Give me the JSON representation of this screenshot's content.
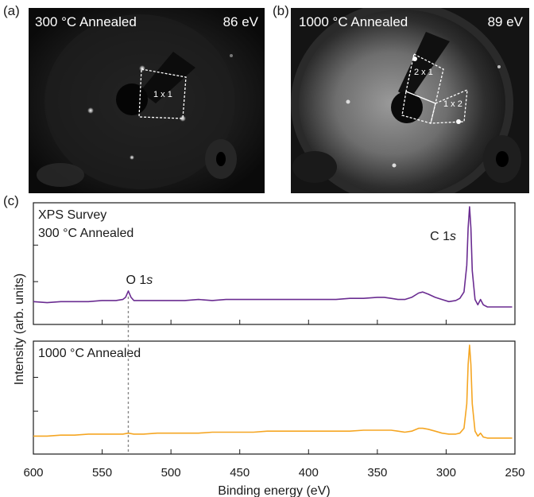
{
  "panel_a": {
    "letter": "(a)",
    "condition": "300 °C Annealed",
    "energy": "86 eV",
    "boxes": [
      {
        "label": "1 x 1"
      }
    ]
  },
  "panel_b": {
    "letter": "(b)",
    "condition": "1000 °C Annealed",
    "energy": "89 eV",
    "boxes": [
      {
        "label": "2 x 1"
      },
      {
        "label": "1 x 2"
      }
    ]
  },
  "panel_c": {
    "letter": "(c)"
  },
  "chart_data": {
    "type": "line",
    "xlabel": "Binding energy (eV)",
    "ylabel": "Intensity (arb. units)",
    "xlim": [
      600,
      250
    ],
    "xticks": [
      600,
      550,
      500,
      450,
      400,
      350,
      300,
      250
    ],
    "x_reversed": true,
    "reference_line": {
      "x": 531,
      "style": "dashed",
      "color": "#888888"
    },
    "panels": [
      {
        "annotation_lines": [
          "XPS Survey",
          "300 °C Annealed"
        ],
        "color": "#6a2c91",
        "ylim": [
          0,
          1
        ],
        "peaks": [
          {
            "label": "O 1s",
            "x": 531
          },
          {
            "label": "C 1s",
            "x": 284
          }
        ],
        "series": {
          "x": [
            600,
            590,
            580,
            570,
            560,
            550,
            545,
            540,
            535,
            533,
            531,
            529,
            527,
            520,
            510,
            500,
            490,
            480,
            470,
            460,
            450,
            440,
            430,
            420,
            410,
            400,
            390,
            380,
            370,
            360,
            350,
            345,
            340,
            335,
            330,
            325,
            320,
            317,
            313,
            308,
            303,
            298,
            293,
            290,
            287,
            285,
            284,
            283,
            282,
            281,
            279,
            277,
            275,
            273,
            270,
            265,
            260,
            255,
            252
          ],
          "values": [
            0.11,
            0.1,
            0.11,
            0.11,
            0.11,
            0.12,
            0.12,
            0.12,
            0.13,
            0.15,
            0.21,
            0.15,
            0.12,
            0.12,
            0.12,
            0.12,
            0.12,
            0.13,
            0.12,
            0.13,
            0.13,
            0.13,
            0.13,
            0.13,
            0.13,
            0.13,
            0.13,
            0.13,
            0.14,
            0.14,
            0.15,
            0.15,
            0.14,
            0.13,
            0.13,
            0.15,
            0.19,
            0.2,
            0.18,
            0.15,
            0.13,
            0.11,
            0.12,
            0.14,
            0.2,
            0.45,
            0.8,
            1.0,
            0.8,
            0.4,
            0.13,
            0.08,
            0.13,
            0.08,
            0.06,
            0.06,
            0.06,
            0.06,
            0.06
          ]
        }
      },
      {
        "annotation_lines": [
          "1000 °C Annealed"
        ],
        "color": "#f5a623",
        "ylim": [
          0,
          1
        ],
        "peaks": [],
        "series": {
          "x": [
            600,
            590,
            580,
            570,
            560,
            550,
            540,
            535,
            531,
            527,
            520,
            510,
            500,
            490,
            480,
            470,
            460,
            450,
            440,
            430,
            420,
            410,
            400,
            390,
            380,
            370,
            360,
            350,
            345,
            340,
            335,
            330,
            325,
            320,
            317,
            313,
            308,
            303,
            298,
            293,
            290,
            287,
            285,
            284,
            283,
            282,
            281,
            279,
            277,
            275,
            273,
            270,
            265,
            260,
            255,
            252
          ],
          "values": [
            0.07,
            0.07,
            0.08,
            0.08,
            0.09,
            0.09,
            0.09,
            0.09,
            0.1,
            0.09,
            0.09,
            0.1,
            0.1,
            0.1,
            0.1,
            0.11,
            0.11,
            0.11,
            0.11,
            0.12,
            0.12,
            0.12,
            0.12,
            0.12,
            0.12,
            0.12,
            0.13,
            0.13,
            0.13,
            0.13,
            0.12,
            0.11,
            0.12,
            0.15,
            0.15,
            0.14,
            0.12,
            0.1,
            0.09,
            0.09,
            0.1,
            0.15,
            0.4,
            0.8,
            1.0,
            0.8,
            0.4,
            0.12,
            0.07,
            0.1,
            0.06,
            0.05,
            0.05,
            0.05,
            0.05,
            0.05
          ]
        }
      }
    ]
  }
}
